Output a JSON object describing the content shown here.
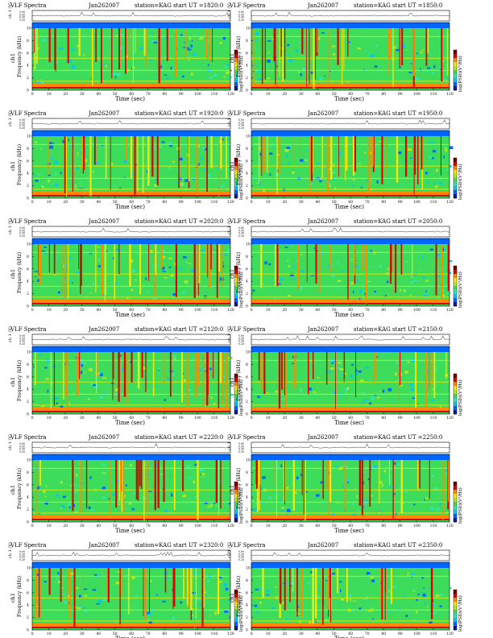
{
  "page": {
    "title_prefix": "VLF Spectra",
    "date": "Jan262007",
    "station": "station=KAG"
  },
  "labels": {
    "channel": "ch 1 (V)",
    "freq_ylabel": "Frequency (kHz)",
    "ch_side": "ch1",
    "xlabel": "Time (sec)",
    "cbar_label": "log(PSD)(V²/Hz)"
  },
  "chart_data": [
    {
      "type": "heatmap",
      "title": "VLF Spectra   Jan262007   station=KAG   start UT =1820:0",
      "xlabel": "Time (sec)",
      "ylabel": "Frequency (kHz)",
      "xlim": [
        0,
        120
      ],
      "ylim": [
        0,
        10
      ],
      "xticks": [
        "0",
        "10",
        "20",
        "30",
        "40",
        "50",
        "60",
        "70",
        "80",
        "90",
        "100",
        "110",
        "120"
      ],
      "yticks": [
        "0",
        "2",
        "4",
        "6",
        "8",
        "10"
      ],
      "start_ut": "1820:0",
      "timeseries_yticks": [
        "0.00",
        "0.50",
        "0.30",
        "0.20"
      ]
    },
    {
      "type": "heatmap",
      "title": "VLF Spectra   Jan262007   station=KAG   start UT =1850:0",
      "xlabel": "Time (sec)",
      "ylabel": "Frequency (kHz)",
      "xlim": [
        0,
        120
      ],
      "ylim": [
        0,
        10
      ],
      "xticks": [
        "0",
        "10",
        "20",
        "30",
        "40",
        "50",
        "60",
        "70",
        "80",
        "90",
        "100",
        "110",
        "120"
      ],
      "yticks": [
        "0",
        "2",
        "4",
        "6",
        "8",
        "10"
      ],
      "start_ut": "1850:0",
      "timeseries_yticks": [
        "0.00",
        "0.50",
        "0.30",
        "0.20"
      ]
    },
    {
      "type": "heatmap",
      "title": "VLF Spectra   Jan262007   station=KAG   start UT =1920:0",
      "xlabel": "Time (sec)",
      "ylabel": "Frequency (kHz)",
      "xlim": [
        0,
        120
      ],
      "ylim": [
        0,
        10
      ],
      "xticks": [
        "0",
        "10",
        "20",
        "30",
        "40",
        "50",
        "60",
        "70",
        "80",
        "90",
        "100",
        "110",
        "120"
      ],
      "yticks": [
        "0",
        "2",
        "4",
        "6",
        "8",
        "10"
      ],
      "start_ut": "1920:0",
      "timeseries_yticks": [
        "0.00",
        "0.50",
        "0.30",
        "0.20"
      ]
    },
    {
      "type": "heatmap",
      "title": "VLF Spectra   Jan262007   station=KAG   start UT =1950:0",
      "xlabel": "Time (sec)",
      "ylabel": "Frequency (kHz)",
      "xlim": [
        0,
        120
      ],
      "ylim": [
        0,
        10
      ],
      "xticks": [
        "0",
        "10",
        "20",
        "30",
        "40",
        "50",
        "60",
        "70",
        "80",
        "90",
        "100",
        "110",
        "120"
      ],
      "yticks": [
        "0",
        "2",
        "4",
        "6",
        "8",
        "10"
      ],
      "start_ut": "1950:0",
      "timeseries_yticks": [
        "0.00",
        "0.50",
        "0.30",
        "0.20"
      ]
    },
    {
      "type": "heatmap",
      "title": "VLF Spectra   Jan262007   station=KAG   start UT =2020:0",
      "xlabel": "Time (sec)",
      "ylabel": "Frequency (kHz)",
      "xlim": [
        0,
        120
      ],
      "ylim": [
        0,
        10
      ],
      "xticks": [
        "0",
        "10",
        "20",
        "30",
        "40",
        "50",
        "60",
        "70",
        "80",
        "90",
        "100",
        "110",
        "120"
      ],
      "yticks": [
        "0",
        "2",
        "4",
        "6",
        "8",
        "10"
      ],
      "start_ut": "2020:0",
      "timeseries_yticks": [
        "0.00",
        "0.50",
        "0.30",
        "0.20"
      ]
    },
    {
      "type": "heatmap",
      "title": "VLF Spectra   Jan262007   station=KAG   start UT =2050:0",
      "xlabel": "Time (sec)",
      "ylabel": "Frequency (kHz)",
      "xlim": [
        0,
        120
      ],
      "ylim": [
        0,
        10
      ],
      "xticks": [
        "0",
        "10",
        "20",
        "30",
        "40",
        "50",
        "60",
        "70",
        "80",
        "90",
        "100",
        "110",
        "120"
      ],
      "yticks": [
        "0",
        "2",
        "4",
        "6",
        "8",
        "10"
      ],
      "start_ut": "2050:0",
      "timeseries_yticks": [
        "0.00",
        "0.50",
        "0.30",
        "0.20"
      ]
    },
    {
      "type": "heatmap",
      "title": "VLF Spectra   Jan262007   station=KAG   start UT =2120:0",
      "xlabel": "Time (sec)",
      "ylabel": "Frequency (kHz)",
      "xlim": [
        0,
        120
      ],
      "ylim": [
        0,
        10
      ],
      "xticks": [
        "0",
        "10",
        "20",
        "30",
        "40",
        "50",
        "60",
        "70",
        "80",
        "90",
        "100",
        "110",
        "120"
      ],
      "yticks": [
        "0",
        "2",
        "4",
        "6",
        "8",
        "10"
      ],
      "start_ut": "2120:0",
      "timeseries_yticks": [
        "0.00",
        "0.50",
        "0.30",
        "0.20"
      ]
    },
    {
      "type": "heatmap",
      "title": "VLF Spectra   Jan262007   station=KAG   start UT =2150:0",
      "xlabel": "Time (sec)",
      "ylabel": "Frequency (kHz)",
      "xlim": [
        0,
        120
      ],
      "ylim": [
        0,
        10
      ],
      "xticks": [
        "0",
        "10",
        "20",
        "30",
        "40",
        "50",
        "60",
        "70",
        "80",
        "90",
        "100",
        "110",
        "120"
      ],
      "yticks": [
        "0",
        "2",
        "4",
        "6",
        "8",
        "10"
      ],
      "start_ut": "2150:0",
      "timeseries_yticks": [
        "0.00",
        "0.50",
        "0.30",
        "0.20"
      ]
    },
    {
      "type": "heatmap",
      "title": "VLF Spectra   Jan262007   station=KAG   start UT =2220:0",
      "xlabel": "Time (sec)",
      "ylabel": "Frequency (kHz)",
      "xlim": [
        0,
        120
      ],
      "ylim": [
        0,
        10
      ],
      "xticks": [
        "0",
        "10",
        "20",
        "30",
        "40",
        "50",
        "60",
        "70",
        "80",
        "90",
        "100",
        "110",
        "120"
      ],
      "yticks": [
        "0",
        "2",
        "4",
        "6",
        "8",
        "10"
      ],
      "start_ut": "2220:0",
      "timeseries_yticks": [
        "0.00",
        "0.50",
        "0.30",
        "0.20"
      ]
    },
    {
      "type": "heatmap",
      "title": "VLF Spectra   Jan262007   station=KAG   start UT =2250:0",
      "xlabel": "Time (sec)",
      "ylabel": "Frequency (kHz)",
      "xlim": [
        0,
        120
      ],
      "ylim": [
        0,
        10
      ],
      "xticks": [
        "0",
        "10",
        "20",
        "30",
        "40",
        "50",
        "60",
        "70",
        "80",
        "90",
        "100",
        "110",
        "120"
      ],
      "yticks": [
        "0",
        "2",
        "4",
        "6",
        "8",
        "10"
      ],
      "start_ut": "2250:0",
      "timeseries_yticks": [
        "0.00",
        "0.50",
        "0.30",
        "0.20"
      ]
    },
    {
      "type": "heatmap",
      "title": "VLF Spectra   Jan262007   station=KAG   start UT =2320:0",
      "xlabel": "Time (sec)",
      "ylabel": "Frequency (kHz)",
      "xlim": [
        0,
        120
      ],
      "ylim": [
        0,
        10
      ],
      "xticks": [
        "0",
        "10",
        "20",
        "30",
        "40",
        "50",
        "60",
        "70",
        "80",
        "90",
        "100",
        "110",
        "120"
      ],
      "yticks": [
        "0",
        "2",
        "4",
        "6",
        "8",
        "10"
      ],
      "start_ut": "2320:0",
      "timeseries_yticks": [
        "0.00",
        "0.50",
        "0.30",
        "0.20"
      ]
    },
    {
      "type": "heatmap",
      "title": "VLF Spectra   Jan262007   station=KAG   start UT =2350:0",
      "xlabel": "Time (sec)",
      "ylabel": "Frequency (kHz)",
      "xlim": [
        0,
        120
      ],
      "ylim": [
        0,
        10
      ],
      "xticks": [
        "0",
        "10",
        "20",
        "30",
        "40",
        "50",
        "60",
        "70",
        "80",
        "90",
        "100",
        "110",
        "120"
      ],
      "yticks": [
        "0",
        "2",
        "4",
        "6",
        "8",
        "10"
      ],
      "start_ut": "2350:0",
      "timeseries_yticks": [
        "0.00",
        "0.50",
        "0.30",
        "0.20"
      ]
    }
  ],
  "colormap": [
    "#001aa8",
    "#0066ff",
    "#00c8ff",
    "#33e6b0",
    "#3ddc5a",
    "#b6e61e",
    "#ffe600",
    "#ff8a00",
    "#e00000",
    "#7a0000"
  ]
}
